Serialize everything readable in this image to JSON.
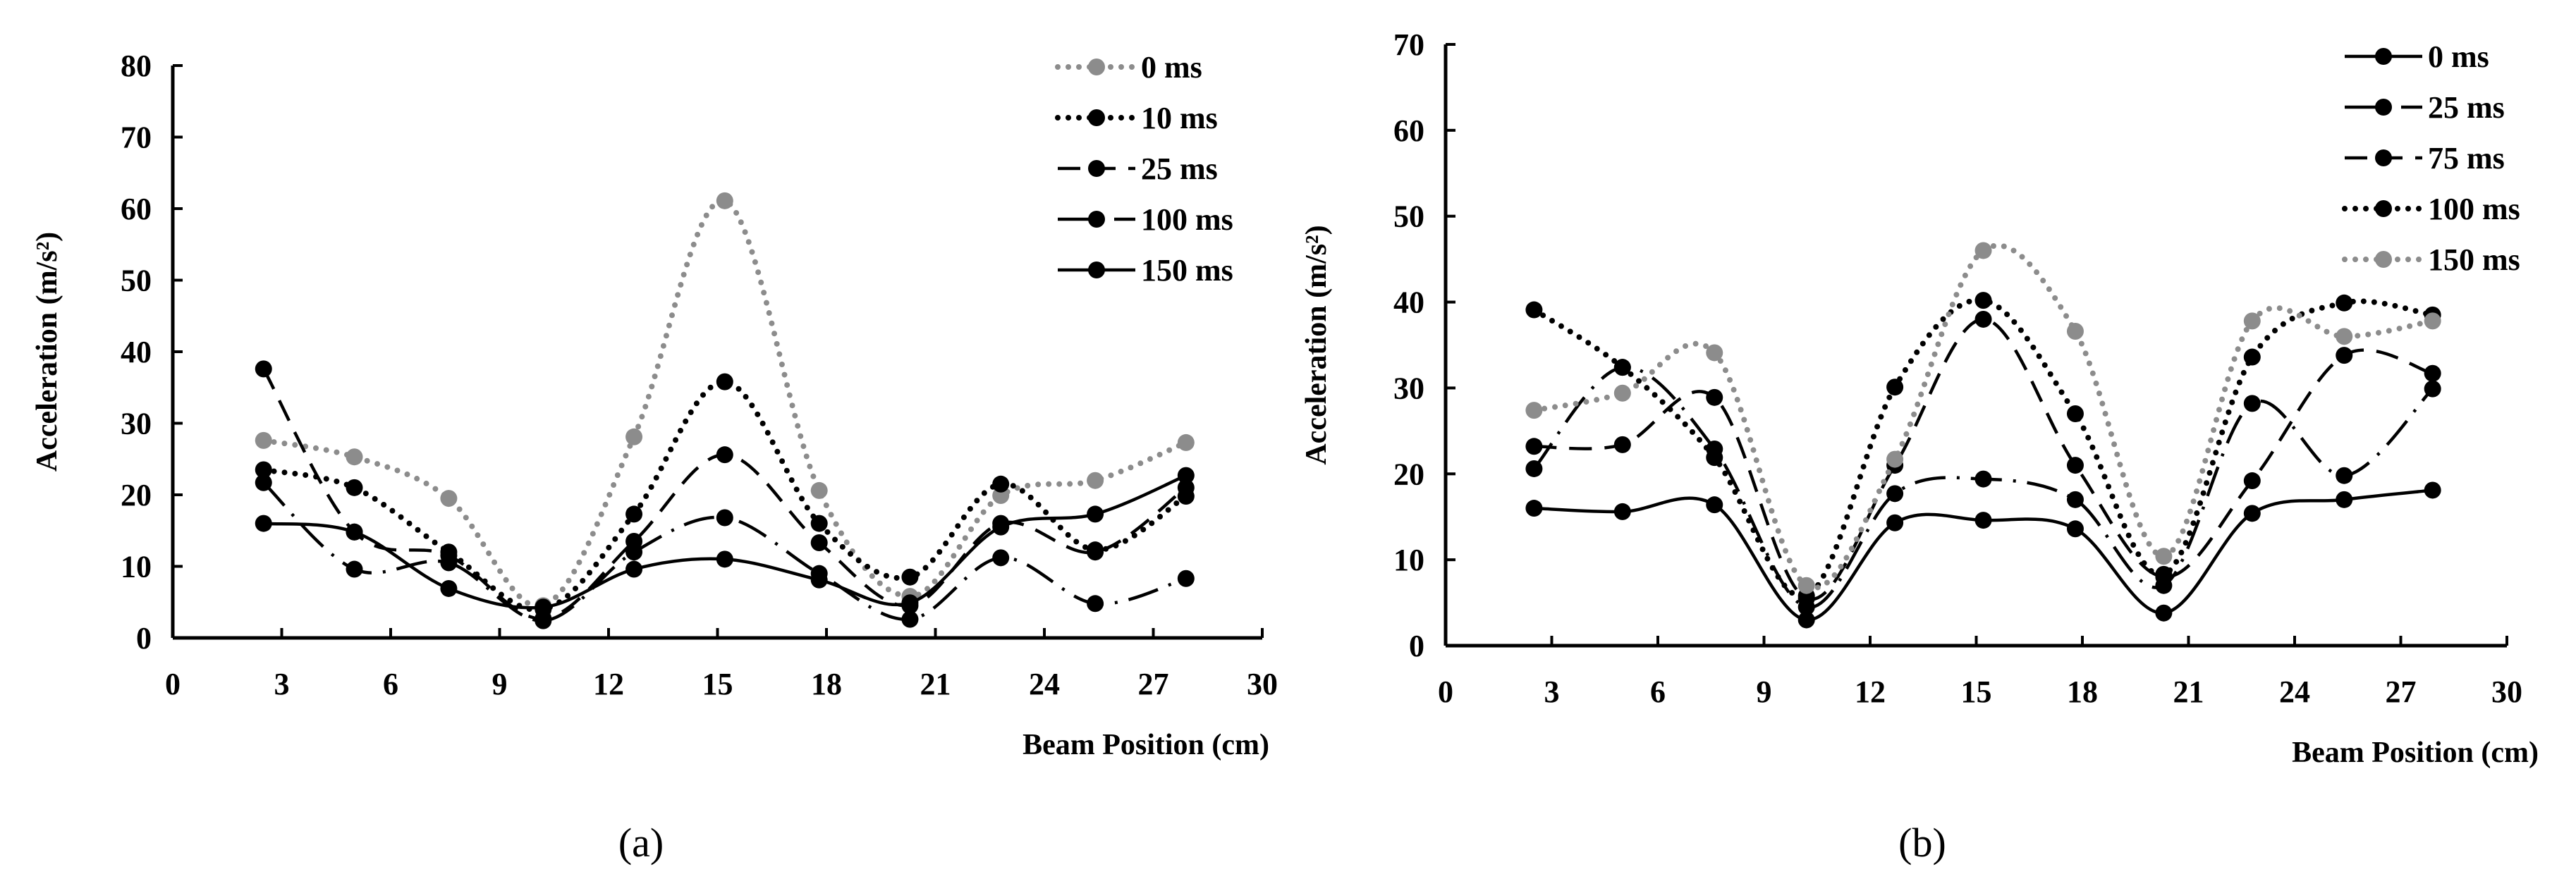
{
  "chart_data": [
    {
      "type": "line",
      "panel_label": "(a)",
      "xlabel": "Beam Position (cm)",
      "ylabel": "Acceleration  (m/s²)",
      "xlim": [
        0,
        30
      ],
      "ylim": [
        0,
        80
      ],
      "xticks": [
        0,
        3,
        6,
        9,
        12,
        15,
        18,
        21,
        24,
        27,
        30
      ],
      "yticks": [
        0,
        10,
        20,
        30,
        40,
        50,
        60,
        70,
        80
      ],
      "legend_position": "top-right",
      "x": [
        2.5,
        5.0,
        7.6,
        10.2,
        12.7,
        15.2,
        17.8,
        20.3,
        22.8,
        25.4,
        27.9
      ],
      "series": [
        {
          "name": "0 ms",
          "style": "dotted",
          "color": "#8c8c8c",
          "values": [
            27.6,
            25.3,
            19.5,
            4.5,
            28.1,
            61.1,
            20.6,
            5.8,
            19.9,
            22.0,
            27.3
          ]
        },
        {
          "name": "10 ms",
          "style": "dotted",
          "color": "#000000",
          "values": [
            23.5,
            21.0,
            12.0,
            4.0,
            17.3,
            35.8,
            16.0,
            8.5,
            21.5,
            12.3,
            19.8
          ]
        },
        {
          "name": "25 ms",
          "style": "dashed",
          "color": "#000000",
          "values": [
            37.6,
            14.8,
            11.5,
            2.7,
            13.5,
            25.6,
            13.3,
            4.5,
            16.0,
            12.0,
            21.0
          ]
        },
        {
          "name": "100 ms",
          "style": "dashdot",
          "color": "#000000",
          "values": [
            21.7,
            9.6,
            10.5,
            2.4,
            12.0,
            16.8,
            9.0,
            2.6,
            11.2,
            4.8,
            8.3
          ]
        },
        {
          "name": "150 ms",
          "style": "solid",
          "color": "#000000",
          "values": [
            16.0,
            14.8,
            6.9,
            4.3,
            9.6,
            11.0,
            8.1,
            4.9,
            15.5,
            17.3,
            22.7
          ]
        }
      ]
    },
    {
      "type": "line",
      "panel_label": "(b)",
      "xlabel": "Beam Position (cm)",
      "ylabel": "Acceleration  (m/s²)",
      "xlim": [
        0,
        30
      ],
      "ylim": [
        0,
        70
      ],
      "xticks": [
        0,
        3,
        6,
        9,
        12,
        15,
        18,
        21,
        24,
        27,
        30
      ],
      "yticks": [
        0,
        10,
        20,
        30,
        40,
        50,
        60,
        70
      ],
      "legend_position": "top-right",
      "x": [
        2.5,
        5.0,
        7.6,
        10.2,
        12.7,
        15.2,
        17.8,
        20.3,
        22.8,
        25.4,
        27.9
      ],
      "series": [
        {
          "name": "0 ms",
          "style": "solid",
          "color": "#000000",
          "values": [
            16.0,
            15.6,
            16.4,
            3.0,
            14.3,
            14.6,
            13.6,
            3.8,
            15.4,
            17.0,
            18.1
          ]
        },
        {
          "name": "25 ms",
          "style": "dashdot",
          "color": "#000000",
          "values": [
            20.6,
            32.4,
            22.9,
            4.5,
            17.7,
            19.4,
            17.0,
            7.0,
            28.2,
            19.8,
            29.9
          ]
        },
        {
          "name": "75 ms",
          "style": "dashed",
          "color": "#000000",
          "values": [
            23.2,
            23.4,
            28.9,
            5.5,
            21.0,
            38.0,
            21.0,
            8.0,
            19.2,
            33.8,
            31.7
          ]
        },
        {
          "name": "100 ms",
          "style": "dotted",
          "color": "#000000",
          "values": [
            39.1,
            32.4,
            21.9,
            5.8,
            30.1,
            40.2,
            27.0,
            8.3,
            33.6,
            39.9,
            38.5
          ]
        },
        {
          "name": "150 ms",
          "style": "dotted",
          "color": "#8c8c8c",
          "values": [
            27.4,
            29.4,
            34.1,
            7.0,
            21.7,
            46.0,
            36.6,
            10.4,
            37.8,
            36.0,
            37.8
          ]
        }
      ]
    }
  ]
}
